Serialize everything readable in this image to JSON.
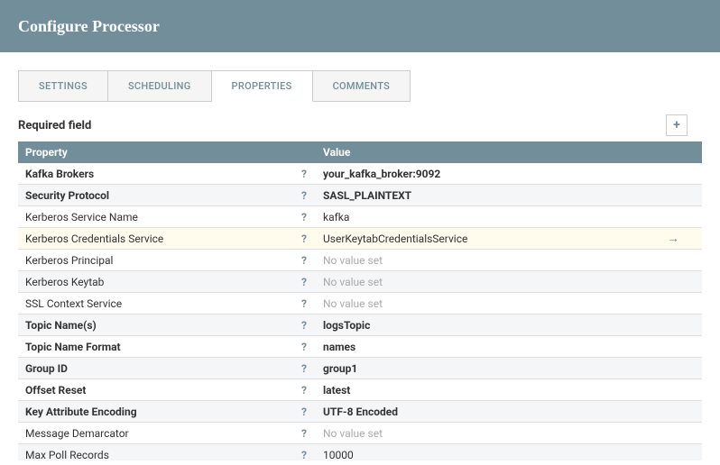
{
  "header": {
    "title": "Configure Processor"
  },
  "tabs": [
    {
      "label": "SETTINGS",
      "active": false
    },
    {
      "label": "SCHEDULING",
      "active": false
    },
    {
      "label": "PROPERTIES",
      "active": true
    },
    {
      "label": "COMMENTS",
      "active": false
    }
  ],
  "required_label": "Required field",
  "add_button_glyph": "+",
  "columns": {
    "property": "Property",
    "value": "Value"
  },
  "no_value_text": "No value set",
  "go_to_glyph": "→",
  "help_glyph": "?",
  "colors": {
    "header_bg": "#728e9b",
    "highlight_bg": "#fffcee",
    "alt_row_bg": "#f4f6f7",
    "unset_text": "#aaaaaa"
  },
  "rows": [
    {
      "name": "Kafka Brokers",
      "bold": true,
      "value": "your_kafka_broker:9092",
      "value_bold": true
    },
    {
      "name": "Security Protocol",
      "bold": true,
      "value": "SASL_PLAINTEXT",
      "value_bold": true
    },
    {
      "name": "Kerberos Service Name",
      "bold": false,
      "value": "kafka",
      "value_bold": false
    },
    {
      "name": "Kerberos Credentials Service",
      "bold": false,
      "value": "UserKeytabCredentialsService",
      "value_bold": false,
      "highlight": true,
      "action": "goto"
    },
    {
      "name": "Kerberos Principal",
      "bold": false,
      "value": null
    },
    {
      "name": "Kerberos Keytab",
      "bold": false,
      "value": null
    },
    {
      "name": "SSL Context Service",
      "bold": false,
      "value": null
    },
    {
      "name": "Topic Name(s)",
      "bold": true,
      "value": "logsTopic",
      "value_bold": true
    },
    {
      "name": "Topic Name Format",
      "bold": true,
      "value": "names",
      "value_bold": true
    },
    {
      "name": "Group ID",
      "bold": true,
      "value": "group1",
      "value_bold": true
    },
    {
      "name": "Offset Reset",
      "bold": true,
      "value": "latest",
      "value_bold": true
    },
    {
      "name": "Key Attribute Encoding",
      "bold": true,
      "value": "UTF-8 Encoded",
      "value_bold": true
    },
    {
      "name": "Message Demarcator",
      "bold": false,
      "value": null
    },
    {
      "name": "Max Poll Records",
      "bold": false,
      "value": "10000",
      "value_bold": false
    }
  ]
}
